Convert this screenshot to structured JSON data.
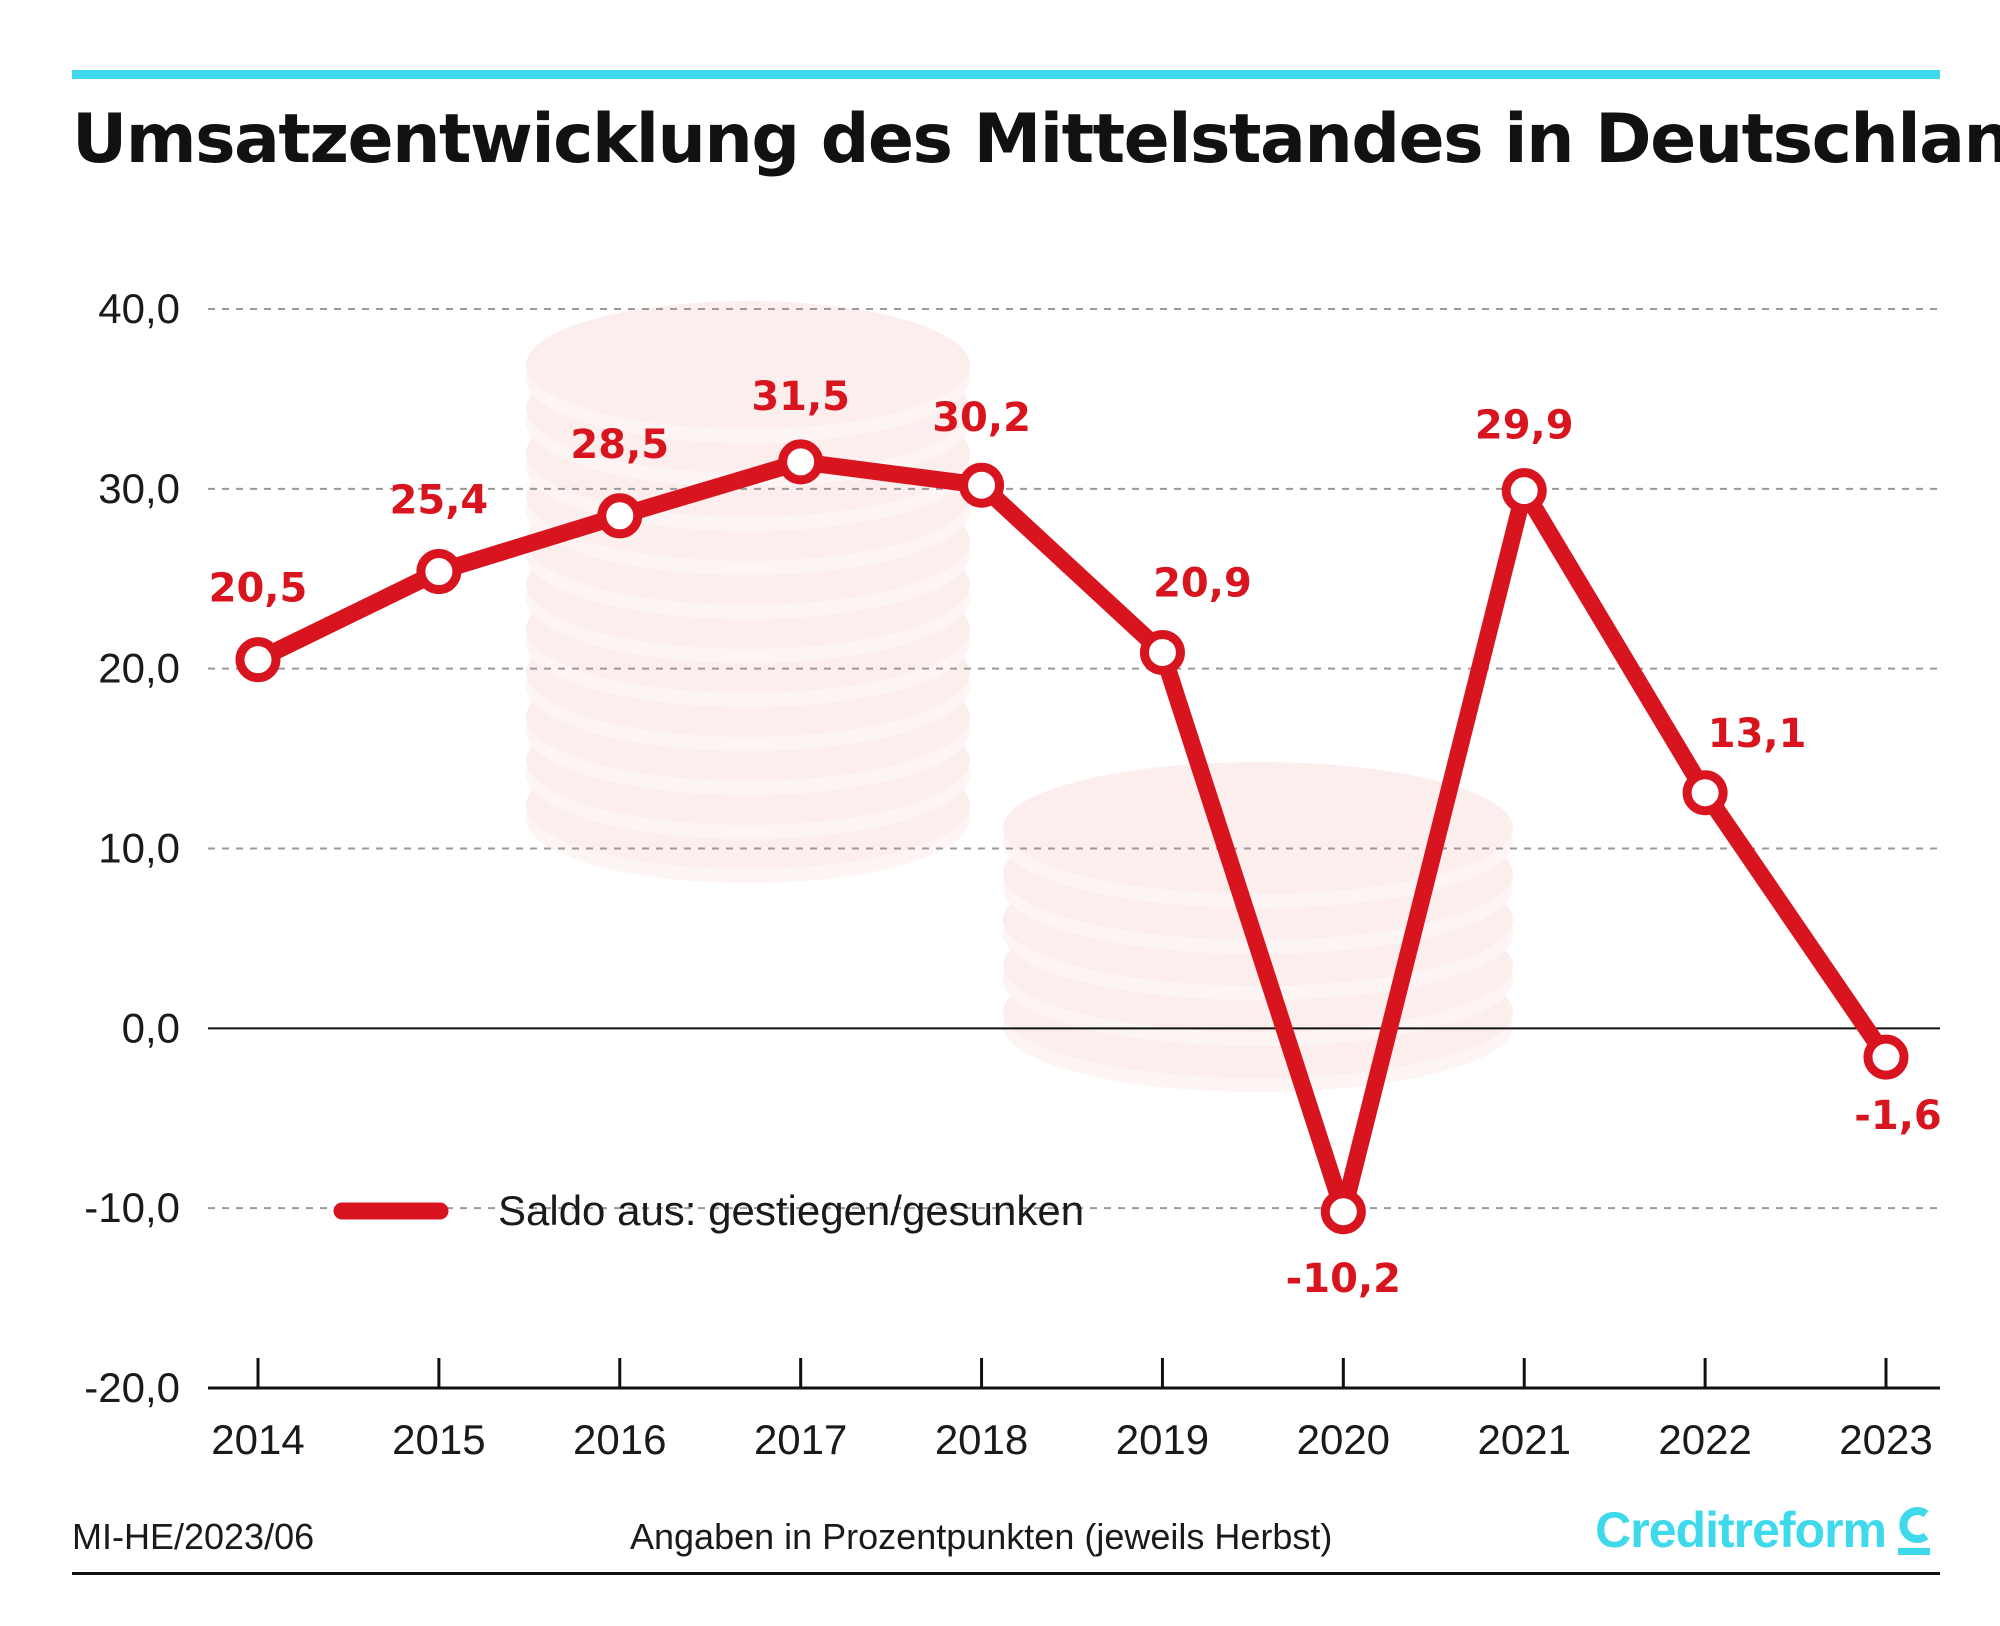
{
  "title": "Umsatzentwicklung des Mittelstandes in Deutschland",
  "footer": {
    "code": "MI-HE/2023/06",
    "note": "Angaben in Prozentpunkten (jeweils Herbst)",
    "brand": "Creditreform"
  },
  "colors": {
    "accent": "#3fd9ec",
    "series": "#d8141f",
    "coins": "#fbeeed"
  },
  "chart_data": {
    "type": "line",
    "title": "Umsatzentwicklung des Mittelstandes in Deutschland",
    "xlabel": "",
    "ylabel": "",
    "categories": [
      "2014",
      "2015",
      "2016",
      "2017",
      "2018",
      "2019",
      "2020",
      "2021",
      "2022",
      "2023"
    ],
    "series": [
      {
        "name": "Saldo aus: gestiegen/gesunken",
        "values": [
          20.5,
          25.4,
          28.5,
          31.5,
          30.2,
          20.9,
          -10.2,
          29.9,
          13.1,
          -1.6
        ],
        "labels": [
          "20,5",
          "25,4",
          "28,5",
          "31,5",
          "30,2",
          "20,9",
          "-10,2",
          "29,9",
          "13,1",
          "-1,6"
        ]
      }
    ],
    "ylim": [
      -20,
      40
    ],
    "yticks": [
      40,
      30,
      20,
      10,
      0,
      -10,
      -20
    ],
    "ytick_labels": [
      "40,0",
      "30,0",
      "20,0",
      "10,0",
      "0,0",
      "-10,0",
      "-20,0"
    ],
    "grid": true,
    "legend": "bottom-left"
  }
}
